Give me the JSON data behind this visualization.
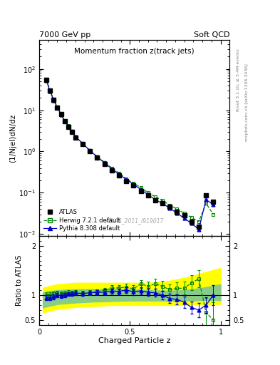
{
  "title_main": "Momentum fraction z(track jets)",
  "top_left_label": "7000 GeV pp",
  "top_right_label": "Soft QCD",
  "ylabel_main": "(1/Njel)dN/dz",
  "ylabel_ratio": "Ratio to ATLAS",
  "xlabel": "Charged Particle z",
  "watermark": "ATLAS_2011_I919017",
  "right_label1": "Rivet 3.1.10, ≥ 3.4M events",
  "right_label2": "mcplots.cern.ch [arXiv:1306.3436]",
  "atlas_x": [
    0.04,
    0.06,
    0.08,
    0.1,
    0.12,
    0.14,
    0.16,
    0.18,
    0.2,
    0.24,
    0.28,
    0.32,
    0.36,
    0.4,
    0.44,
    0.48,
    0.52,
    0.56,
    0.6,
    0.64,
    0.68,
    0.72,
    0.76,
    0.8,
    0.84,
    0.88,
    0.92,
    0.96
  ],
  "atlas_y": [
    55.0,
    30.0,
    18.0,
    11.5,
    8.0,
    5.5,
    4.0,
    3.0,
    2.2,
    1.5,
    1.0,
    0.7,
    0.5,
    0.35,
    0.26,
    0.19,
    0.15,
    0.11,
    0.085,
    0.065,
    0.055,
    0.045,
    0.035,
    0.028,
    0.02,
    0.015,
    0.085,
    0.06
  ],
  "atlas_yerr": [
    3.0,
    1.5,
    1.0,
    0.6,
    0.4,
    0.3,
    0.2,
    0.15,
    0.11,
    0.08,
    0.05,
    0.04,
    0.025,
    0.018,
    0.013,
    0.01,
    0.008,
    0.006,
    0.004,
    0.003,
    0.003,
    0.002,
    0.002,
    0.001,
    0.001,
    0.001,
    0.004,
    0.003
  ],
  "herwig_x": [
    0.04,
    0.06,
    0.08,
    0.1,
    0.12,
    0.14,
    0.16,
    0.18,
    0.2,
    0.24,
    0.28,
    0.32,
    0.36,
    0.4,
    0.44,
    0.48,
    0.52,
    0.56,
    0.6,
    0.64,
    0.68,
    0.72,
    0.76,
    0.8,
    0.84,
    0.88,
    0.92,
    0.96
  ],
  "herwig_y": [
    55.0,
    30.0,
    18.5,
    12.0,
    8.2,
    5.7,
    4.2,
    3.1,
    2.3,
    1.55,
    1.05,
    0.75,
    0.55,
    0.4,
    0.3,
    0.22,
    0.17,
    0.135,
    0.1,
    0.08,
    0.065,
    0.05,
    0.04,
    0.032,
    0.025,
    0.02,
    0.055,
    0.03
  ],
  "pythia_x": [
    0.04,
    0.06,
    0.08,
    0.1,
    0.12,
    0.14,
    0.16,
    0.18,
    0.2,
    0.24,
    0.28,
    0.32,
    0.36,
    0.4,
    0.44,
    0.48,
    0.52,
    0.56,
    0.6,
    0.64,
    0.68,
    0.72,
    0.76,
    0.8,
    0.84,
    0.88,
    0.92,
    0.96
  ],
  "pythia_y": [
    52.0,
    28.5,
    17.5,
    11.5,
    7.9,
    5.5,
    4.1,
    3.1,
    2.3,
    1.55,
    1.05,
    0.74,
    0.53,
    0.38,
    0.28,
    0.21,
    0.16,
    0.12,
    0.09,
    0.068,
    0.055,
    0.042,
    0.032,
    0.024,
    0.018,
    0.013,
    0.068,
    0.052
  ],
  "pythia_yerr": [
    3.0,
    1.5,
    1.0,
    0.6,
    0.4,
    0.3,
    0.2,
    0.15,
    0.11,
    0.08,
    0.05,
    0.04,
    0.025,
    0.018,
    0.013,
    0.01,
    0.008,
    0.006,
    0.004,
    0.003,
    0.003,
    0.002,
    0.002,
    0.001,
    0.001,
    0.001,
    0.004,
    0.003
  ],
  "ratio_herwig": [
    1.0,
    1.0,
    1.03,
    1.04,
    1.025,
    1.035,
    1.05,
    1.033,
    1.045,
    1.033,
    1.05,
    1.07,
    1.1,
    1.14,
    1.15,
    1.16,
    1.13,
    1.23,
    1.18,
    1.23,
    1.18,
    1.11,
    1.14,
    1.14,
    1.25,
    1.33,
    0.65,
    0.5
  ],
  "ratio_herwig_err": [
    0.06,
    0.06,
    0.05,
    0.05,
    0.05,
    0.05,
    0.05,
    0.05,
    0.05,
    0.05,
    0.05,
    0.05,
    0.05,
    0.06,
    0.06,
    0.07,
    0.07,
    0.08,
    0.09,
    0.1,
    0.11,
    0.11,
    0.12,
    0.13,
    0.15,
    0.17,
    0.3,
    0.35
  ],
  "ratio_pythia": [
    0.95,
    0.95,
    0.97,
    1.0,
    0.99,
    1.0,
    1.025,
    1.033,
    1.045,
    1.033,
    1.05,
    1.057,
    1.06,
    1.086,
    1.077,
    1.105,
    1.067,
    1.09,
    1.06,
    1.046,
    1.0,
    0.933,
    0.914,
    0.857,
    0.75,
    0.7,
    0.8,
    1.0
  ],
  "ratio_pythia_err": [
    0.05,
    0.05,
    0.05,
    0.04,
    0.04,
    0.04,
    0.04,
    0.04,
    0.04,
    0.04,
    0.04,
    0.04,
    0.05,
    0.05,
    0.055,
    0.06,
    0.065,
    0.07,
    0.075,
    0.08,
    0.085,
    0.09,
    0.1,
    0.11,
    0.12,
    0.14,
    0.16,
    0.2
  ],
  "band_yellow_x": [
    0.02,
    0.05,
    0.1,
    0.2,
    0.3,
    0.4,
    0.5,
    0.6,
    0.7,
    0.8,
    0.9,
    1.0
  ],
  "band_yellow_low": [
    0.65,
    0.68,
    0.72,
    0.76,
    0.78,
    0.8,
    0.8,
    0.8,
    0.8,
    0.8,
    0.82,
    0.82
  ],
  "band_yellow_high": [
    1.15,
    1.18,
    1.22,
    1.25,
    1.25,
    1.25,
    1.25,
    1.25,
    1.28,
    1.35,
    1.45,
    1.55
  ],
  "band_green_x": [
    0.02,
    0.05,
    0.1,
    0.2,
    0.3,
    0.4,
    0.5,
    0.6,
    0.7,
    0.8,
    0.9,
    1.0
  ],
  "band_green_low": [
    0.75,
    0.78,
    0.82,
    0.85,
    0.87,
    0.88,
    0.89,
    0.89,
    0.89,
    0.89,
    0.9,
    0.9
  ],
  "band_green_high": [
    1.05,
    1.08,
    1.1,
    1.12,
    1.12,
    1.12,
    1.12,
    1.1,
    1.09,
    1.1,
    1.15,
    1.22
  ],
  "atlas_color": "#000000",
  "herwig_color": "#008800",
  "pythia_color": "#0000cc",
  "yellow_band_color": "#ffff00",
  "green_band_color": "#88cc88",
  "ylim_main": [
    0.009,
    500
  ],
  "ylim_ratio": [
    0.4,
    2.2
  ],
  "xlim": [
    0.0,
    1.05
  ],
  "yticks_ratio": [
    0.5,
    1.0,
    2.0
  ],
  "ytick_labels_ratio": [
    "0.5",
    "1",
    "2"
  ]
}
